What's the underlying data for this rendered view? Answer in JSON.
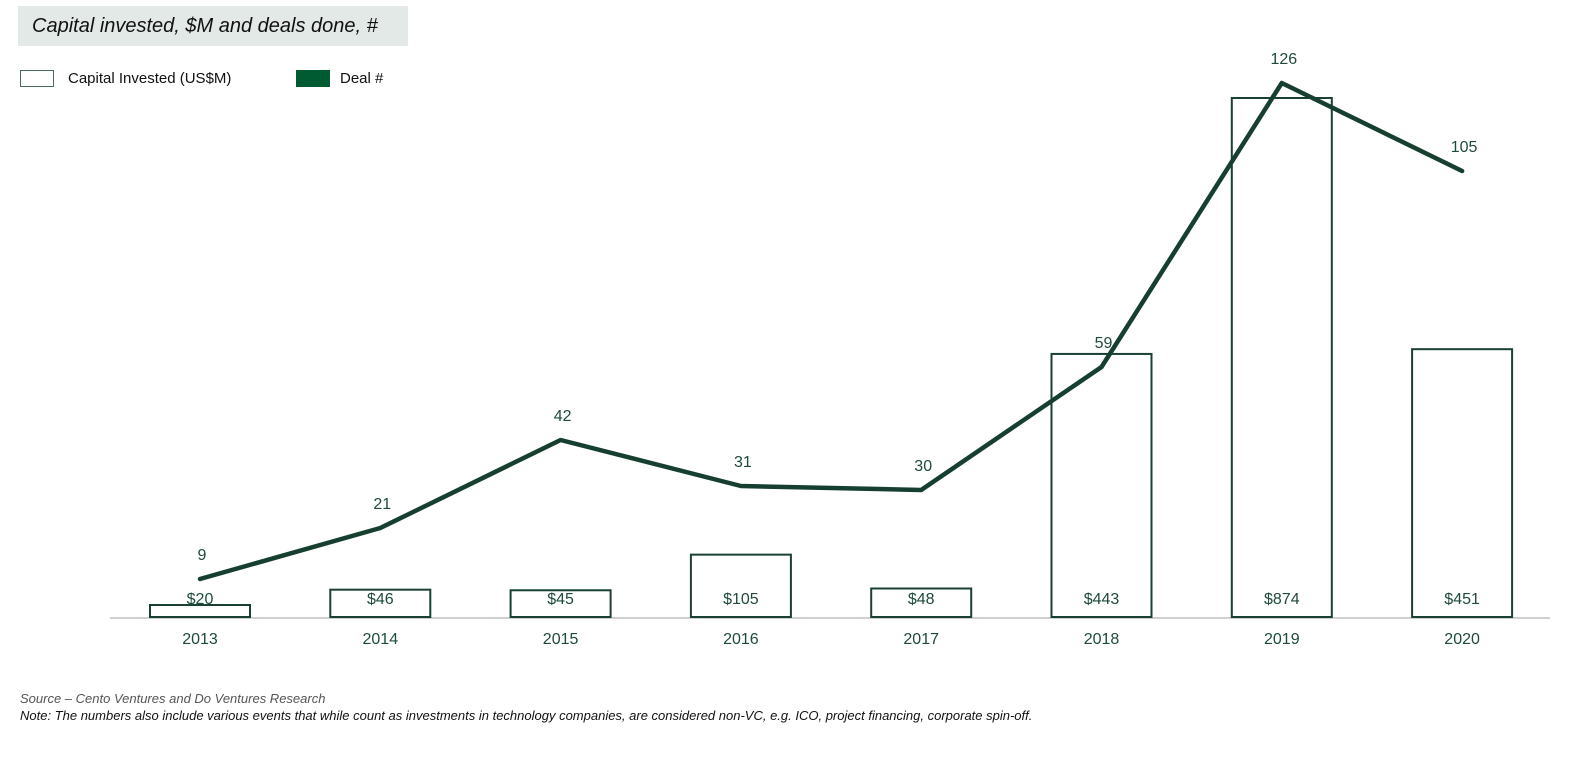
{
  "title": "Capital invested, $M and deals done, #",
  "legend": [
    {
      "label": "Capital Invested (US$M)",
      "style": "outline"
    },
    {
      "label": "Deal #",
      "style": "solid"
    }
  ],
  "colors": {
    "line": "#173f30",
    "bar_stroke": "#1a4035",
    "label": "#1d4a3a",
    "axis": "#d0d0d0",
    "title_bg": "#e3e9e6"
  },
  "footer": {
    "source": "Source – Cento Ventures and Do Ventures Research",
    "note": "Note: The numbers also include various events that while count as investments in technology companies, are considered non-VC, e.g. ICO, project financing, corporate spin-off."
  },
  "chart_data": {
    "type": "bar",
    "title": "Capital invested, $M and deals done, #",
    "categories": [
      "2013",
      "2014",
      "2015",
      "2016",
      "2017",
      "2018",
      "2019",
      "2020"
    ],
    "series": [
      {
        "name": "Capital Invested (US$M)",
        "type": "bar",
        "values": [
          20,
          46,
          45,
          105,
          48,
          443,
          874,
          451
        ],
        "labels": [
          "$20",
          "$46",
          "$45",
          "$105",
          "$48",
          "$443",
          "$874",
          "$451"
        ]
      },
      {
        "name": "Deal #",
        "type": "line",
        "values": [
          9,
          21,
          42,
          31,
          30,
          59,
          126,
          105
        ],
        "labels": [
          "9",
          "21",
          "42",
          "31",
          "30",
          "59",
          "126",
          "105"
        ]
      }
    ],
    "xlabel": "",
    "ylabel": "",
    "grid": false,
    "legend_position": "top-left"
  }
}
